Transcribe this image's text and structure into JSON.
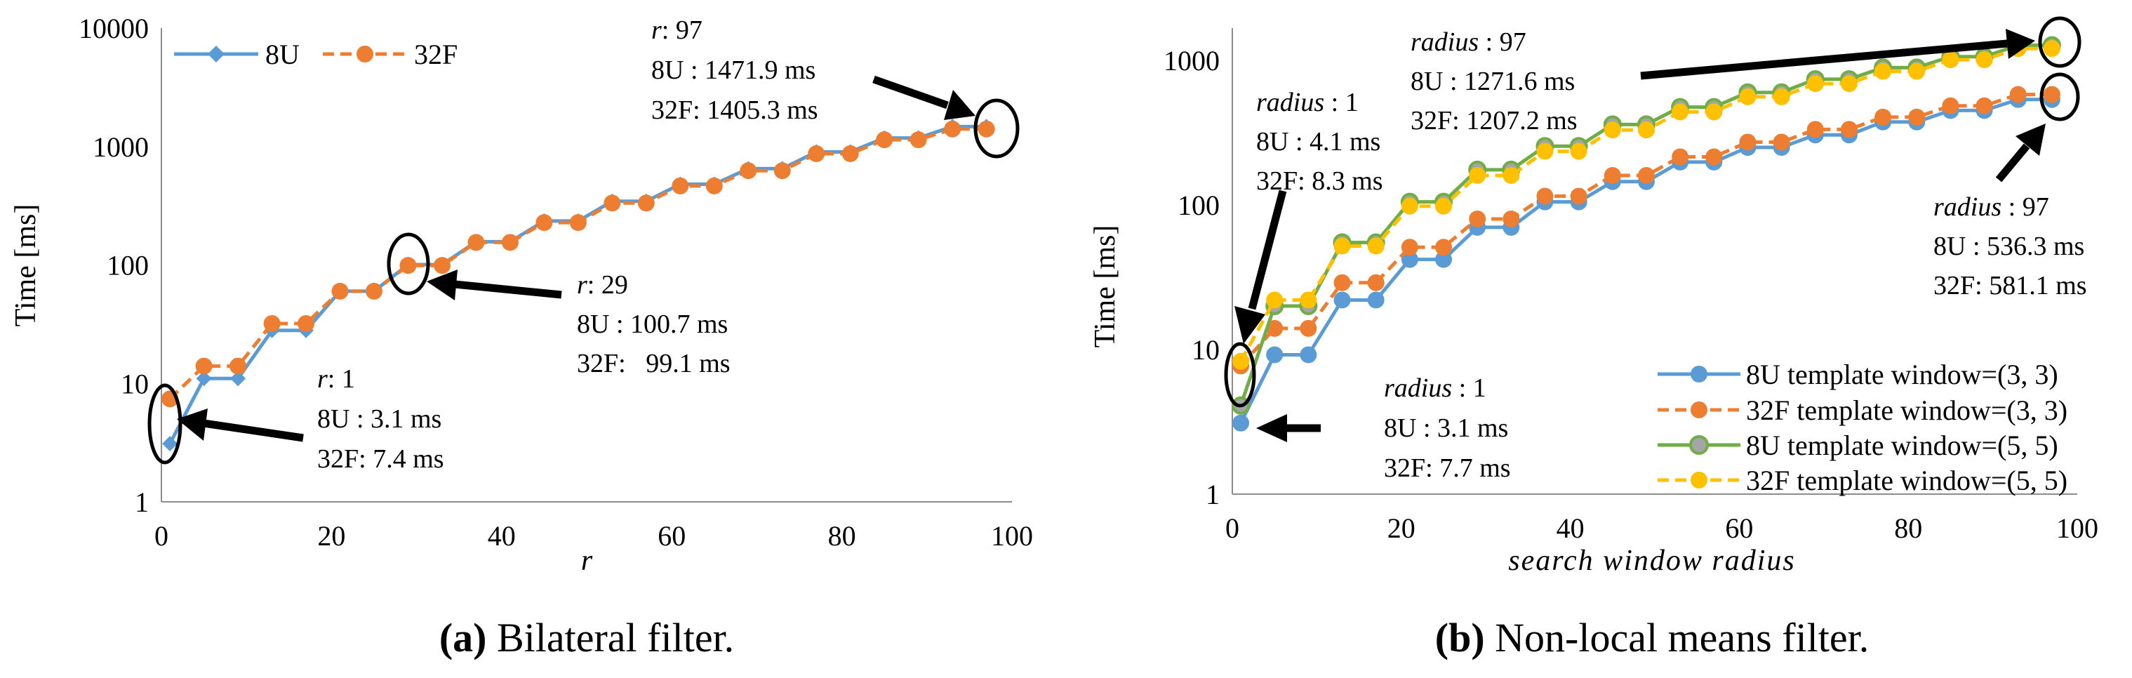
{
  "chart_data": [
    {
      "id": "a",
      "type": "line",
      "yscale": "log",
      "caption": {
        "letter": "(a)",
        "text": " Bilateral filter."
      },
      "xlabel": "r",
      "ylabel": "Time [ms]",
      "xlim": [
        0,
        100
      ],
      "ylim": [
        1,
        10000
      ],
      "xticks": [
        "0",
        "20",
        "40",
        "60",
        "80",
        "100"
      ],
      "yticks": [
        "1",
        "10",
        "100",
        "1000",
        "10000"
      ],
      "legend": {
        "placement": "top-left"
      },
      "x": [
        1,
        5,
        9,
        13,
        17,
        21,
        25,
        29,
        33,
        37,
        41,
        45,
        49,
        53,
        57,
        61,
        65,
        69,
        73,
        77,
        81,
        85,
        89,
        93,
        97
      ],
      "series": [
        {
          "name": "8U",
          "color": "#5b9bd5",
          "marker": "diamond",
          "dash": "solid",
          "values": [
            3.1,
            11,
            11,
            28,
            28,
            60,
            60,
            100.7,
            100.7,
            157,
            157,
            235,
            235,
            345,
            345,
            480,
            480,
            650,
            650,
            900,
            900,
            1180,
            1180,
            1471.9,
            1471.9
          ]
        },
        {
          "name": "32F",
          "color": "#ed7d31",
          "marker": "circle",
          "dash": "dashed",
          "values": [
            7.4,
            14,
            14,
            32,
            32,
            60,
            60,
            99.1,
            99.1,
            155,
            155,
            228,
            228,
            333,
            333,
            465,
            465,
            625,
            625,
            870,
            870,
            1140,
            1140,
            1405.3,
            1405.3
          ]
        }
      ],
      "annotations": [
        {
          "label": "r",
          "value": ": 1",
          "line1": "8U : 3.1 ms",
          "line2": "32F: 7.4 ms"
        },
        {
          "label": "r",
          "value": ": 29",
          "line1": "8U : 100.7 ms",
          "line2": "32F:   99.1 ms"
        },
        {
          "label": "r",
          "value": ": 97",
          "line1": "8U : 1471.9 ms",
          "line2": "32F: 1405.3 ms"
        }
      ]
    },
    {
      "id": "b",
      "type": "line",
      "yscale": "log",
      "caption": {
        "letter": "(b)",
        "text": " Non-local means filter."
      },
      "xlabel": "search window radius",
      "ylabel": "Time [ms]",
      "xlim": [
        0,
        100
      ],
      "ylim": [
        1,
        2000
      ],
      "xticks": [
        "0",
        "20",
        "40",
        "60",
        "80",
        "100"
      ],
      "yticks": [
        "1",
        "10",
        "100",
        "1000"
      ],
      "legend": {
        "placement": "bottom-right"
      },
      "x": [
        1,
        5,
        9,
        13,
        17,
        21,
        25,
        29,
        33,
        37,
        41,
        45,
        49,
        53,
        57,
        61,
        65,
        69,
        73,
        77,
        81,
        85,
        89,
        93,
        97
      ],
      "series": [
        {
          "name": "8U template window=(3, 3)",
          "color": "#5b9bd5",
          "marker": "circle",
          "dash": "solid",
          "values": [
            3.1,
            9.2,
            9.2,
            22,
            22,
            42,
            42,
            70,
            70,
            105,
            105,
            145,
            145,
            198,
            198,
            250,
            250,
            305,
            305,
            375,
            375,
            450,
            450,
            536.3,
            536.3
          ]
        },
        {
          "name": "32F template window=(3, 3)",
          "color": "#ed7d31",
          "marker": "circle",
          "dash": "dashed",
          "values": [
            7.7,
            14,
            14,
            29,
            29,
            51,
            51,
            80,
            80,
            115,
            115,
            160,
            160,
            215,
            215,
            272,
            272,
            333,
            333,
            405,
            405,
            485,
            485,
            581.1,
            581.1
          ]
        },
        {
          "name": "8U template window=(5, 5)",
          "color": "#70ad47",
          "marker": "circle",
          "dash": "solid",
          "values": [
            4.1,
            20,
            20,
            55,
            55,
            105,
            105,
            175,
            175,
            255,
            255,
            360,
            360,
            475,
            475,
            600,
            600,
            740,
            740,
            890,
            890,
            1060,
            1060,
            1271.6,
            1271.6
          ]
        },
        {
          "name": "32F template window=(5, 5)",
          "color": "#ffc000",
          "marker": "circle",
          "dash": "dashed",
          "values": [
            8.3,
            22,
            22,
            52,
            52,
            98,
            98,
            160,
            160,
            235,
            235,
            330,
            330,
            440,
            440,
            560,
            560,
            690,
            690,
            840,
            840,
            1010,
            1010,
            1207.2,
            1207.2
          ]
        }
      ],
      "annotations": [
        {
          "label": "radius",
          "value": " : 1",
          "line1": "8U : 4.1 ms",
          "line2": "32F: 8.3 ms"
        },
        {
          "label": "radius",
          "value": " : 1",
          "line1": "8U : 3.1 ms",
          "line2": "32F: 7.7 ms"
        },
        {
          "label": "radius",
          "value": " : 97",
          "line1": "8U : 1271.6 ms",
          "line2": "32F: 1207.2 ms"
        },
        {
          "label": "radius",
          "value": " : 97",
          "line1": "8U : 536.3 ms",
          "line2": "32F: 581.1 ms"
        }
      ]
    }
  ]
}
